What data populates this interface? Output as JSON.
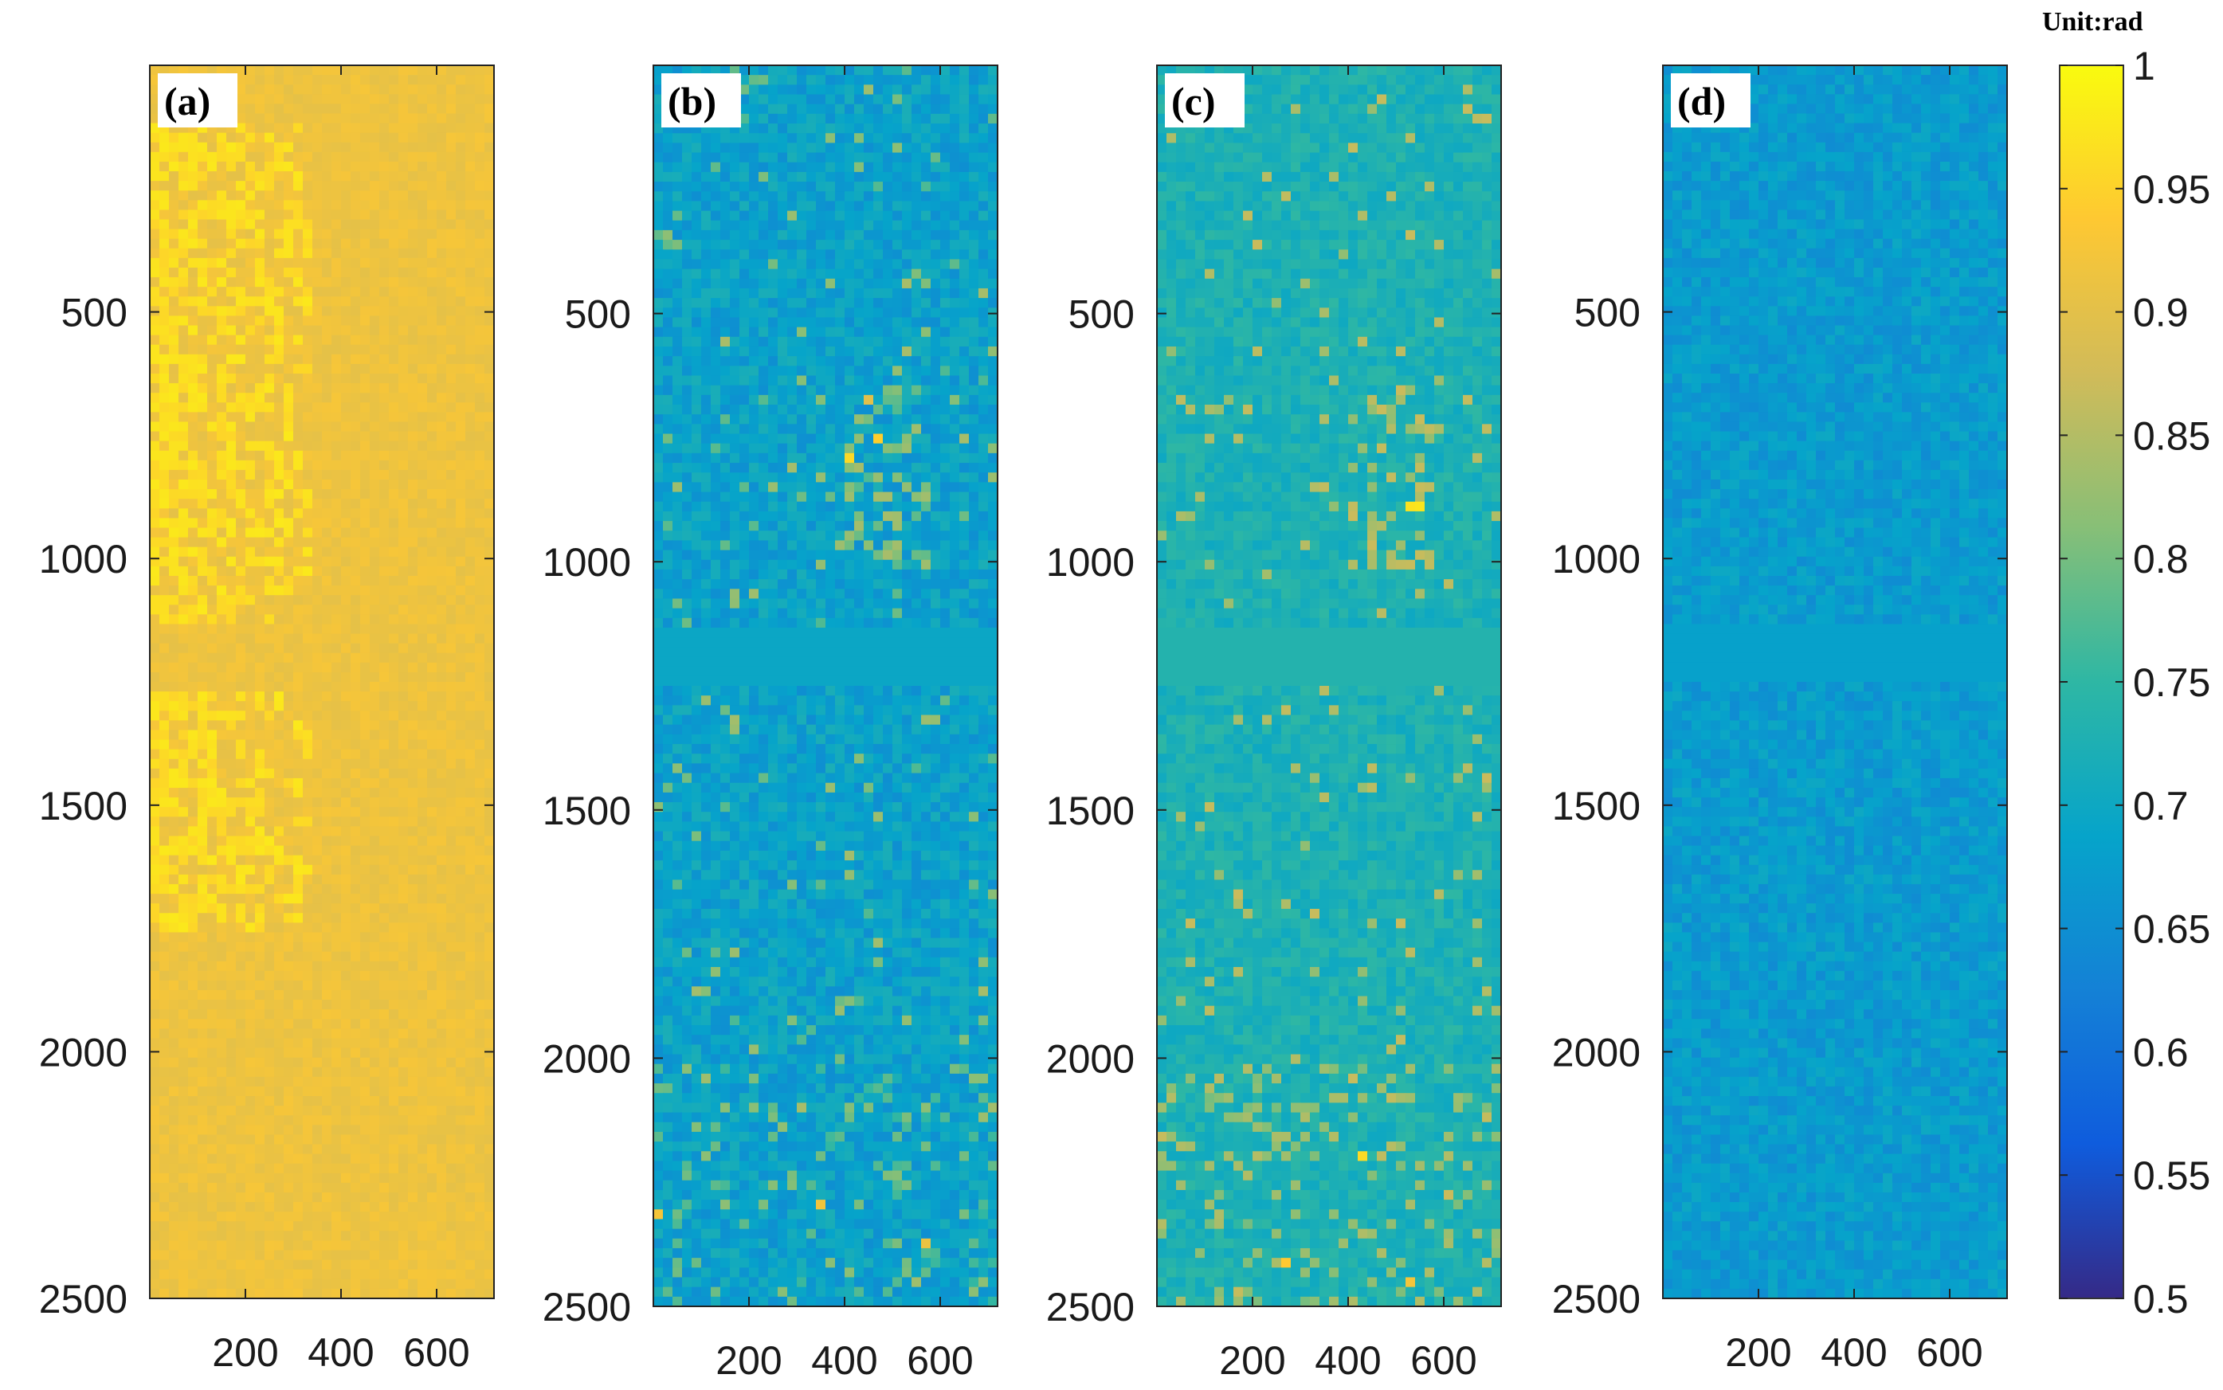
{
  "chart_data": {
    "type": "heatmap",
    "value_unit_label": "Unit:rad",
    "colormap": "parula",
    "colormap_stops": [
      "#352a87",
      "#0f5cdd",
      "#1481d6",
      "#06a4ca",
      "#2eb7a4",
      "#87bf77",
      "#d1bb59",
      "#fec832",
      "#f9fb0e"
    ],
    "colorbar": {
      "min": 0.5,
      "max": 1,
      "ticks": [
        0.5,
        0.55,
        0.6,
        0.65,
        0.7,
        0.75,
        0.8,
        0.85,
        0.9,
        0.95,
        1
      ],
      "tick_labels": [
        "0.5",
        "0.55",
        "0.6",
        "0.65",
        "0.7",
        "0.75",
        "0.8",
        "0.85",
        "0.9",
        "0.95",
        "1"
      ]
    },
    "x_range": [
      0,
      720
    ],
    "y_range": [
      0,
      2500
    ],
    "x_ticks": [
      200,
      400,
      600
    ],
    "x_tick_labels": [
      "200",
      "400",
      "600"
    ],
    "y_ticks": [
      500,
      1000,
      1500,
      2000,
      2500
    ],
    "y_tick_labels": [
      "500",
      "1000",
      "1500",
      "2000",
      "2500"
    ],
    "panels": [
      {
        "label": "(a)",
        "mean_value": 0.915,
        "noise": 0.012,
        "bright_patches": true
      },
      {
        "label": "(b)",
        "mean_value": 0.685,
        "noise": 0.035,
        "bright_patches": true
      },
      {
        "label": "(c)",
        "mean_value": 0.725,
        "noise": 0.025,
        "bright_patches": true
      },
      {
        "label": "(d)",
        "mean_value": 0.672,
        "noise": 0.028,
        "bright_patches": false
      }
    ]
  }
}
